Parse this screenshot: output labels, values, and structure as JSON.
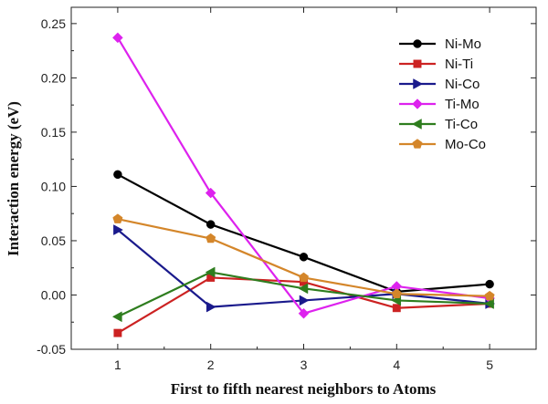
{
  "chart_data": {
    "type": "line",
    "title": "",
    "xlabel": "First to fifth nearest neighbors to Atoms",
    "ylabel": "Interaction energy (eV)",
    "x": [
      1,
      2,
      3,
      4,
      5
    ],
    "xlim": [
      0.5,
      5.5
    ],
    "ylim": [
      -0.05,
      0.265
    ],
    "xticks": [
      1,
      2,
      3,
      4,
      5
    ],
    "yticks": [
      -0.05,
      0.0,
      0.05,
      0.1,
      0.15,
      0.2,
      0.25
    ],
    "ytick_labels": [
      "-0.05",
      "0.00",
      "0.05",
      "0.10",
      "0.15",
      "0.20",
      "0.25"
    ],
    "grid": false,
    "legend_position": "top-right",
    "series": [
      {
        "name": "Ni-Mo",
        "color": "#000000",
        "marker": "circle",
        "values": [
          0.111,
          0.065,
          0.035,
          0.003,
          0.01
        ]
      },
      {
        "name": "Ni-Ti",
        "color": "#cc2222",
        "marker": "square",
        "values": [
          -0.035,
          0.016,
          0.012,
          -0.012,
          -0.008
        ]
      },
      {
        "name": "Ni-Co",
        "color": "#1a1a8c",
        "marker": "triangle-right",
        "values": [
          0.06,
          -0.011,
          -0.005,
          0.001,
          -0.008
        ]
      },
      {
        "name": "Ti-Mo",
        "color": "#dd22ee",
        "marker": "diamond",
        "values": [
          0.237,
          0.094,
          -0.017,
          0.008,
          -0.003
        ]
      },
      {
        "name": "Ti-Co",
        "color": "#2e7d1e",
        "marker": "triangle-left",
        "values": [
          -0.02,
          0.021,
          0.006,
          -0.005,
          -0.008
        ]
      },
      {
        "name": "Mo-Co",
        "color": "#d4862a",
        "marker": "pentagon",
        "values": [
          0.07,
          0.052,
          0.016,
          0.001,
          -0.001
        ]
      }
    ]
  }
}
